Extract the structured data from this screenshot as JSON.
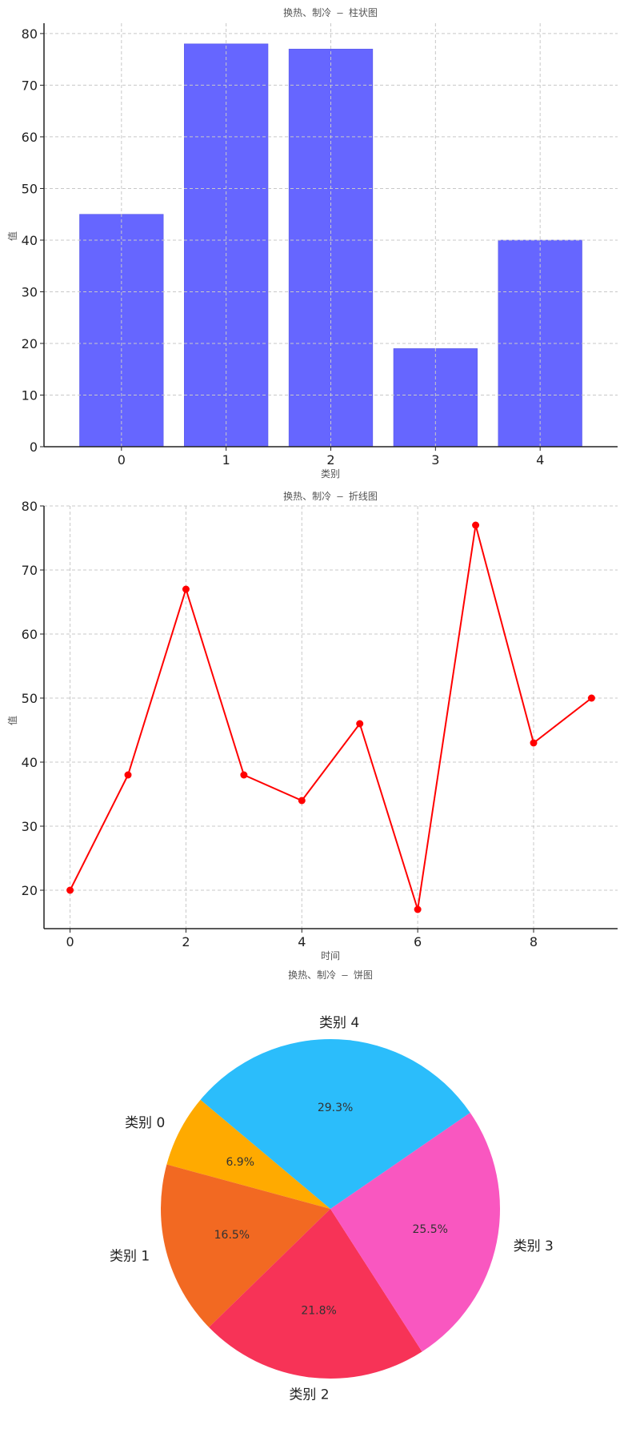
{
  "chart_data": [
    {
      "type": "bar",
      "title": "换热、制冷 – 柱状图",
      "xlabel": "类别",
      "ylabel": "值",
      "categories": [
        "0",
        "1",
        "2",
        "3",
        "4"
      ],
      "values": [
        45,
        78,
        77,
        19,
        40
      ],
      "ylim": [
        0,
        82
      ],
      "yticks": [
        0,
        10,
        20,
        30,
        40,
        50,
        60,
        70,
        80
      ],
      "grid": true,
      "color": "#6666ff"
    },
    {
      "type": "line",
      "title": "换热、制冷 – 折线图",
      "xlabel": "时间",
      "ylabel": "值",
      "x": [
        0,
        1,
        2,
        3,
        4,
        5,
        6,
        7,
        8,
        9
      ],
      "values": [
        20,
        38,
        67,
        38,
        34,
        46,
        17,
        77,
        43,
        50
      ],
      "xlim": [
        -0.45,
        9.45
      ],
      "ylim": [
        14,
        80
      ],
      "xticks": [
        0,
        2,
        4,
        6,
        8
      ],
      "yticks": [
        20,
        30,
        40,
        50,
        60,
        70,
        80
      ],
      "grid": true,
      "color": "#ff0000"
    },
    {
      "type": "pie",
      "title": "换热、制冷 – 饼图",
      "labels": [
        "类别 0",
        "类别 1",
        "类别 2",
        "类别 3",
        "类别 4"
      ],
      "values": [
        6.9,
        16.5,
        21.8,
        25.5,
        29.3
      ],
      "percent_labels": [
        "6.9%",
        "16.5%",
        "21.8%",
        "25.5%",
        "29.3%"
      ],
      "colors": [
        "#ffaa00",
        "#f26922",
        "#f73357",
        "#f957c0",
        "#2bbdfb"
      ]
    }
  ]
}
